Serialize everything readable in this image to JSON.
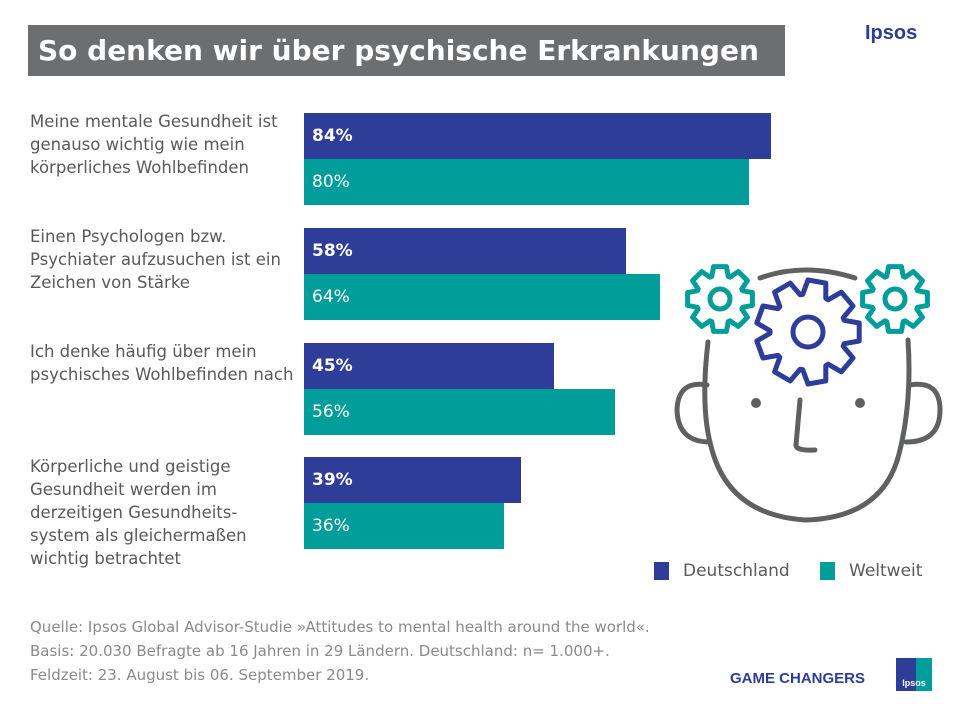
{
  "title": "So denken wir über psychische Erkrankungen",
  "brand": "Ipsos",
  "colors": {
    "deutschland": "#2e3d98",
    "weltweit": "#009d9a",
    "title_bg": "#6d6e70"
  },
  "chart_data": {
    "type": "bar",
    "orientation": "horizontal",
    "categories": [
      "Meine mentale Gesundheit ist genauso wichtig wie mein körperliches Wohlbefinden",
      "Einen Psychologen bzw. Psychiater aufzusuchen ist ein Zeichen von Stärke",
      "Ich denke häufig über mein psychisches Wohlbefinden nach",
      "Körperliche und geistige Gesundheit werden im derzeitigen Gesundheits-system als gleichermaßen wichtig betrachtet"
    ],
    "series": [
      {
        "name": "Deutschland",
        "values": [
          84,
          58,
          45,
          39
        ],
        "labels": [
          "84%",
          "58%",
          "45%",
          "39%"
        ]
      },
      {
        "name": "Weltweit",
        "values": [
          80,
          64,
          56,
          36
        ],
        "labels": [
          "80%",
          "64%",
          "56%",
          "36%"
        ]
      }
    ],
    "unit": "%",
    "xlim": [
      0,
      100
    ],
    "legend": "bottom-right",
    "grid": false
  },
  "footer": {
    "source_lines": [
      "Quelle: Ipsos Global Advisor-Studie »Attitudes to mental health around the world«.",
      "Basis: 20.030 Befragte ab 16 Jahren in 29 Ländern. Deutschland: n= 1.000+.",
      "Feldzeit: 23. August bis 06. September 2019."
    ],
    "tagline": "GAME CHANGERS",
    "logo_text": "Ipsos"
  },
  "illustration": "head-with-gears-icon"
}
